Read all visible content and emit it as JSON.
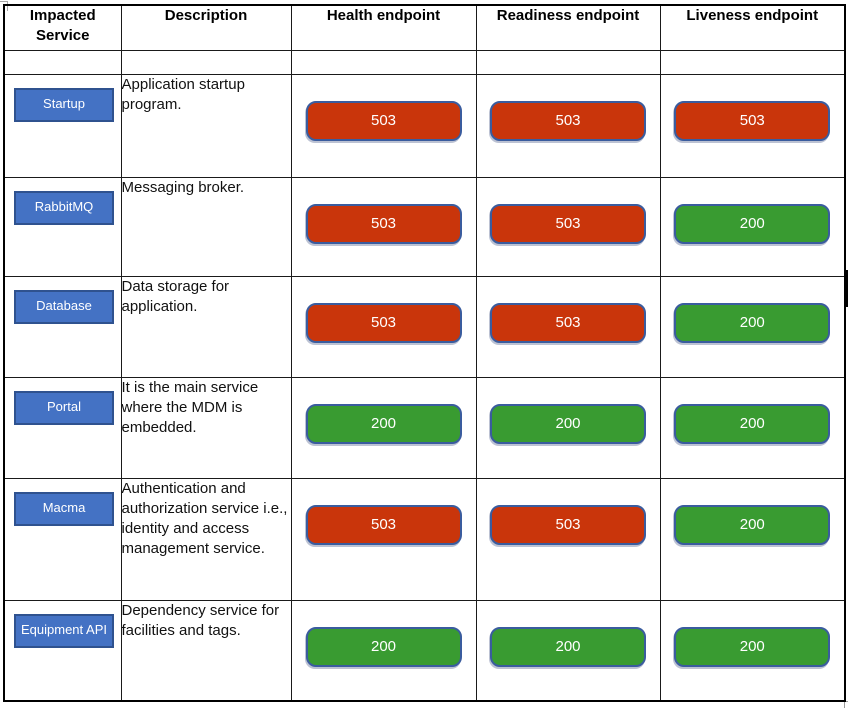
{
  "table": {
    "headers": {
      "service": "Impacted Service",
      "description": "Description",
      "health": "Health endpoint",
      "readiness": "Readiness endpoint",
      "liveness": "Liveness endpoint"
    },
    "rows": [
      {
        "service": "Startup",
        "description": "Application startup program.",
        "health": "503",
        "readiness": "503",
        "liveness": "503"
      },
      {
        "service": "RabbitMQ",
        "description": "Messaging broker.",
        "health": "503",
        "readiness": "503",
        "liveness": "200"
      },
      {
        "service": "Database",
        "description": "Data storage for application.",
        "health": "503",
        "readiness": "503",
        "liveness": "200"
      },
      {
        "service": "Portal",
        "description": "It is the main service where the MDM is embedded.",
        "health": "200",
        "readiness": "200",
        "liveness": "200"
      },
      {
        "service": "Macma",
        "description": "Authentication and authorization service i.e., identity and access management service.",
        "health": "503",
        "readiness": "503",
        "liveness": "200"
      },
      {
        "service": "Equipment API",
        "description": "Dependency service for facilities and tags.",
        "health": "200",
        "readiness": "200",
        "liveness": "200"
      }
    ]
  },
  "colors": {
    "error_red": "#C9350B",
    "ok_green": "#399B31",
    "service_blue": "#4472C4",
    "service_border": "#2F528F",
    "status_border": "#3A5C9E"
  }
}
